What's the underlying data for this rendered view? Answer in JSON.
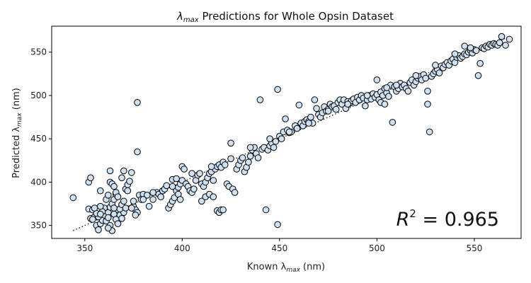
{
  "chart_data": {
    "type": "scatter",
    "title_prefix": "λ",
    "title_sub": "max",
    "title_rest": " Predictions for Whole Opsin Dataset",
    "xlabel_prefix": "Known λ",
    "xlabel_sub": "max",
    "xlabel_rest": " (nm)",
    "ylabel_prefix": "Predicted λ",
    "ylabel_sub": "max",
    "ylabel_rest": " (nm)",
    "xlim": [
      333,
      574
    ],
    "ylim": [
      335,
      580
    ],
    "xticks": [
      "350",
      "400",
      "450",
      "500",
      "550"
    ],
    "yticks": [
      "350",
      "400",
      "450",
      "500",
      "550"
    ],
    "annotation_symbol": "R",
    "annotation_exp": "2",
    "annotation_value": " = 0.965",
    "grid": false,
    "marker_fill": "#cfe2f3",
    "marker_edge": "#000000",
    "reference_line": {
      "style": "dotted",
      "from": [
        344,
        344
      ],
      "to": [
        567,
        567
      ]
    },
    "points": [
      [
        344,
        382
      ],
      [
        352,
        369
      ],
      [
        354,
        368
      ],
      [
        353,
        358
      ],
      [
        355,
        360
      ],
      [
        356,
        350
      ],
      [
        357,
        345
      ],
      [
        358,
        352
      ],
      [
        359,
        356
      ],
      [
        360,
        362
      ],
      [
        361,
        369
      ],
      [
        362,
        365
      ],
      [
        363,
        371
      ],
      [
        364,
        375
      ],
      [
        365,
        380
      ],
      [
        366,
        386
      ],
      [
        367,
        368
      ],
      [
        368,
        362
      ],
      [
        369,
        358
      ],
      [
        370,
        365
      ],
      [
        352,
        400
      ],
      [
        353,
        405
      ],
      [
        358,
        390
      ],
      [
        361,
        380
      ],
      [
        362,
        385
      ],
      [
        363,
        400
      ],
      [
        364,
        398
      ],
      [
        365,
        395
      ],
      [
        366,
        388
      ],
      [
        367,
        383
      ],
      [
        360,
        370
      ],
      [
        359,
        366
      ],
      [
        358,
        372
      ],
      [
        357,
        360
      ],
      [
        356,
        364
      ],
      [
        355,
        370
      ],
      [
        354,
        357
      ],
      [
        361,
        355
      ],
      [
        362,
        359
      ],
      [
        363,
        350
      ],
      [
        364,
        344
      ],
      [
        365,
        363
      ],
      [
        366,
        357
      ],
      [
        367,
        352
      ],
      [
        368,
        369
      ],
      [
        369,
        374
      ],
      [
        370,
        378
      ],
      [
        371,
        392
      ],
      [
        372,
        397
      ],
      [
        373,
        401
      ],
      [
        374,
        411
      ],
      [
        363,
        413
      ],
      [
        370,
        413
      ],
      [
        369,
        405
      ],
      [
        372,
        390
      ],
      [
        375,
        372
      ],
      [
        376,
        368
      ],
      [
        377,
        365
      ],
      [
        378,
        385
      ],
      [
        379,
        380
      ],
      [
        377,
        492
      ],
      [
        377,
        435
      ],
      [
        380,
        386
      ],
      [
        382,
        385
      ],
      [
        383,
        372
      ],
      [
        385,
        380
      ],
      [
        387,
        388
      ],
      [
        388,
        386
      ],
      [
        389,
        383
      ],
      [
        390,
        390
      ],
      [
        391,
        392
      ],
      [
        392,
        396
      ],
      [
        393,
        370
      ],
      [
        394,
        374
      ],
      [
        395,
        378
      ],
      [
        396,
        382
      ],
      [
        397,
        390
      ],
      [
        398,
        394
      ],
      [
        399,
        398
      ],
      [
        400,
        402
      ],
      [
        395,
        403
      ],
      [
        397,
        404
      ],
      [
        398,
        386
      ],
      [
        399,
        380
      ],
      [
        400,
        418
      ],
      [
        401,
        415
      ],
      [
        402,
        398
      ],
      [
        403,
        395
      ],
      [
        404,
        390
      ],
      [
        405,
        388
      ],
      [
        406,
        392
      ],
      [
        407,
        402
      ],
      [
        408,
        408
      ],
      [
        409,
        410
      ],
      [
        410,
        398
      ],
      [
        411,
        395
      ],
      [
        412,
        400
      ],
      [
        413,
        405
      ],
      [
        414,
        410
      ],
      [
        415,
        412
      ],
      [
        416,
        402
      ],
      [
        417,
        415
      ],
      [
        418,
        418
      ],
      [
        419,
        420
      ],
      [
        420,
        417
      ],
      [
        421,
        423
      ],
      [
        422,
        420
      ],
      [
        423,
        398
      ],
      [
        424,
        395
      ],
      [
        425,
        445
      ],
      [
        410,
        378
      ],
      [
        412,
        383
      ],
      [
        414,
        386
      ],
      [
        416,
        383
      ],
      [
        418,
        367
      ],
      [
        419,
        365
      ],
      [
        420,
        368
      ],
      [
        421,
        368
      ],
      [
        426,
        392
      ],
      [
        427,
        388
      ],
      [
        428,
        415
      ],
      [
        429,
        420
      ],
      [
        430,
        425
      ],
      [
        431,
        428
      ],
      [
        432,
        412
      ],
      [
        433,
        417
      ],
      [
        434,
        423
      ],
      [
        435,
        430
      ],
      [
        436,
        437
      ],
      [
        437,
        440
      ],
      [
        438,
        433
      ],
      [
        439,
        428
      ],
      [
        440,
        495
      ],
      [
        441,
        438
      ],
      [
        442,
        440
      ],
      [
        443,
        368
      ],
      [
        444,
        437
      ],
      [
        445,
        442
      ],
      [
        446,
        445
      ],
      [
        447,
        440
      ],
      [
        448,
        447
      ],
      [
        449,
        507
      ],
      [
        449,
        351
      ],
      [
        450,
        453
      ],
      [
        451,
        450
      ],
      [
        452,
        458
      ],
      [
        453,
        473
      ],
      [
        454,
        460
      ],
      [
        455,
        457
      ],
      [
        456,
        458
      ],
      [
        458,
        465
      ],
      [
        459,
        462
      ],
      [
        460,
        489
      ],
      [
        461,
        468
      ],
      [
        462,
        465
      ],
      [
        463,
        470
      ],
      [
        464,
        472
      ],
      [
        465,
        470
      ],
      [
        466,
        475
      ],
      [
        467,
        468
      ],
      [
        468,
        495
      ],
      [
        469,
        485
      ],
      [
        470,
        478
      ],
      [
        471,
        475
      ],
      [
        472,
        480
      ],
      [
        473,
        487
      ],
      [
        474,
        482
      ],
      [
        475,
        484
      ],
      [
        476,
        490
      ],
      [
        477,
        487
      ],
      [
        478,
        488
      ],
      [
        479,
        484
      ],
      [
        480,
        492
      ],
      [
        481,
        495
      ],
      [
        482,
        490
      ],
      [
        483,
        495
      ],
      [
        484,
        485
      ],
      [
        485,
        493
      ],
      [
        486,
        491
      ],
      [
        487,
        494
      ],
      [
        488,
        496
      ],
      [
        489,
        492
      ],
      [
        490,
        498
      ],
      [
        491,
        495
      ],
      [
        492,
        500
      ],
      [
        493,
        497
      ],
      [
        494,
        488
      ],
      [
        495,
        495
      ],
      [
        496,
        500
      ],
      [
        497,
        496
      ],
      [
        498,
        502
      ],
      [
        499,
        498
      ],
      [
        500,
        501
      ],
      [
        501,
        495
      ],
      [
        502,
        504
      ],
      [
        503,
        500
      ],
      [
        504,
        508
      ],
      [
        505,
        503
      ],
      [
        506,
        499
      ],
      [
        507,
        512
      ],
      [
        500,
        518
      ],
      [
        502,
        492
      ],
      [
        504,
        490
      ],
      [
        508,
        469
      ],
      [
        509,
        510
      ],
      [
        510,
        505
      ],
      [
        511,
        508
      ],
      [
        512,
        514
      ],
      [
        513,
        510
      ],
      [
        514,
        512
      ],
      [
        515,
        508
      ],
      [
        516,
        505
      ],
      [
        517,
        515
      ],
      [
        518,
        518
      ],
      [
        519,
        512
      ],
      [
        520,
        516
      ],
      [
        521,
        520
      ],
      [
        522,
        522
      ],
      [
        523,
        518
      ],
      [
        524,
        524
      ],
      [
        525,
        520
      ],
      [
        526,
        490
      ],
      [
        527,
        458
      ],
      [
        526,
        505
      ],
      [
        528,
        522
      ],
      [
        529,
        525
      ],
      [
        530,
        528
      ],
      [
        531,
        530
      ],
      [
        532,
        526
      ],
      [
        533,
        534
      ],
      [
        534,
        532
      ],
      [
        535,
        536
      ],
      [
        536,
        538
      ],
      [
        537,
        535
      ],
      [
        538,
        540
      ],
      [
        539,
        542
      ],
      [
        540,
        538
      ],
      [
        541,
        544
      ],
      [
        542,
        546
      ],
      [
        543,
        543
      ],
      [
        544,
        545
      ],
      [
        545,
        548
      ],
      [
        546,
        547
      ],
      [
        547,
        550
      ],
      [
        548,
        552
      ],
      [
        549,
        549
      ],
      [
        550,
        553
      ],
      [
        551,
        552
      ],
      [
        552,
        523
      ],
      [
        553,
        537
      ],
      [
        554,
        555
      ],
      [
        555,
        554
      ],
      [
        556,
        557
      ],
      [
        557,
        556
      ],
      [
        558,
        559
      ],
      [
        559,
        558
      ],
      [
        560,
        560
      ],
      [
        561,
        559
      ],
      [
        562,
        558
      ],
      [
        563,
        561
      ],
      [
        564,
        568
      ],
      [
        566,
        558
      ],
      [
        568,
        565
      ],
      [
        545,
        557
      ],
      [
        548,
        555
      ],
      [
        540,
        548
      ],
      [
        530,
        535
      ],
      [
        520,
        523
      ],
      [
        510,
        512
      ],
      [
        505,
        509
      ],
      [
        495,
        500
      ],
      [
        485,
        490
      ],
      [
        475,
        482
      ],
      [
        465,
        468
      ],
      [
        455,
        458
      ],
      [
        445,
        450
      ],
      [
        435,
        440
      ],
      [
        425,
        427
      ],
      [
        415,
        418
      ],
      [
        405,
        410
      ],
      [
        395,
        395
      ],
      [
        385,
        388
      ],
      [
        375,
        378
      ],
      [
        365,
        370
      ],
      [
        358,
        363
      ],
      [
        362,
        347
      ],
      [
        371,
        370
      ],
      [
        374,
        370
      ],
      [
        376,
        362
      ],
      [
        380,
        380
      ]
    ]
  }
}
